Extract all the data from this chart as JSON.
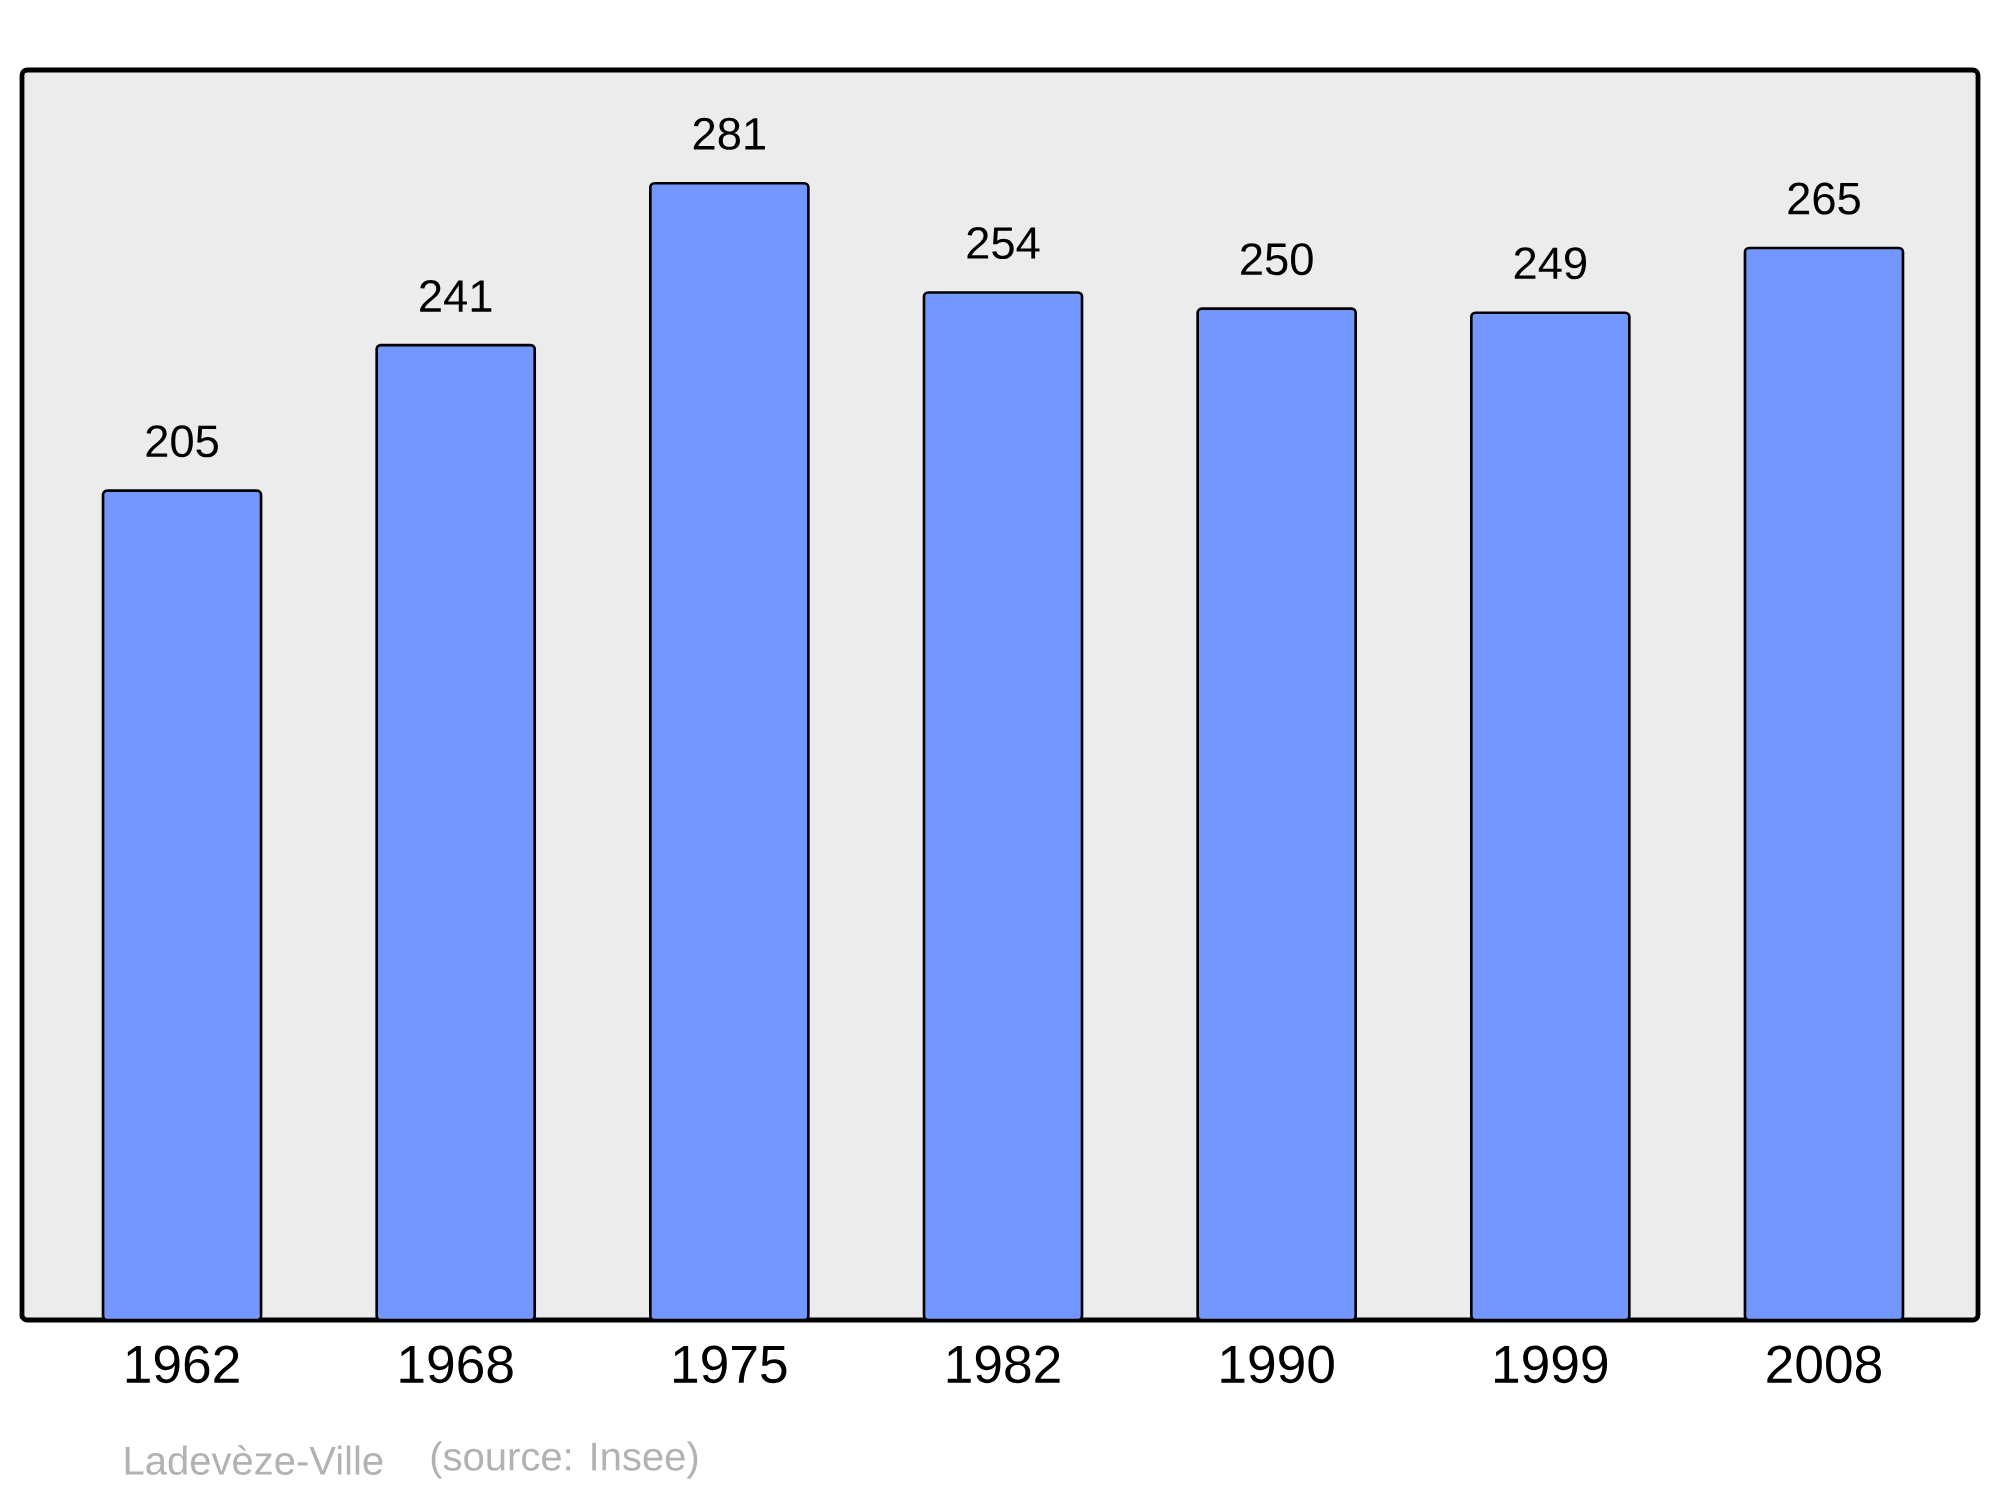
{
  "chart_data": {
    "type": "bar",
    "categories": [
      "1962",
      "1968",
      "1975",
      "1982",
      "1990",
      "1999",
      "2008"
    ],
    "values": [
      205,
      241,
      281,
      254,
      250,
      249,
      265
    ],
    "color": "#7397ff",
    "data_labels": true,
    "ylim": [
      0,
      309
    ],
    "annotations": [
      "Ladevèze-Ville",
      "(source: Insee)"
    ]
  }
}
